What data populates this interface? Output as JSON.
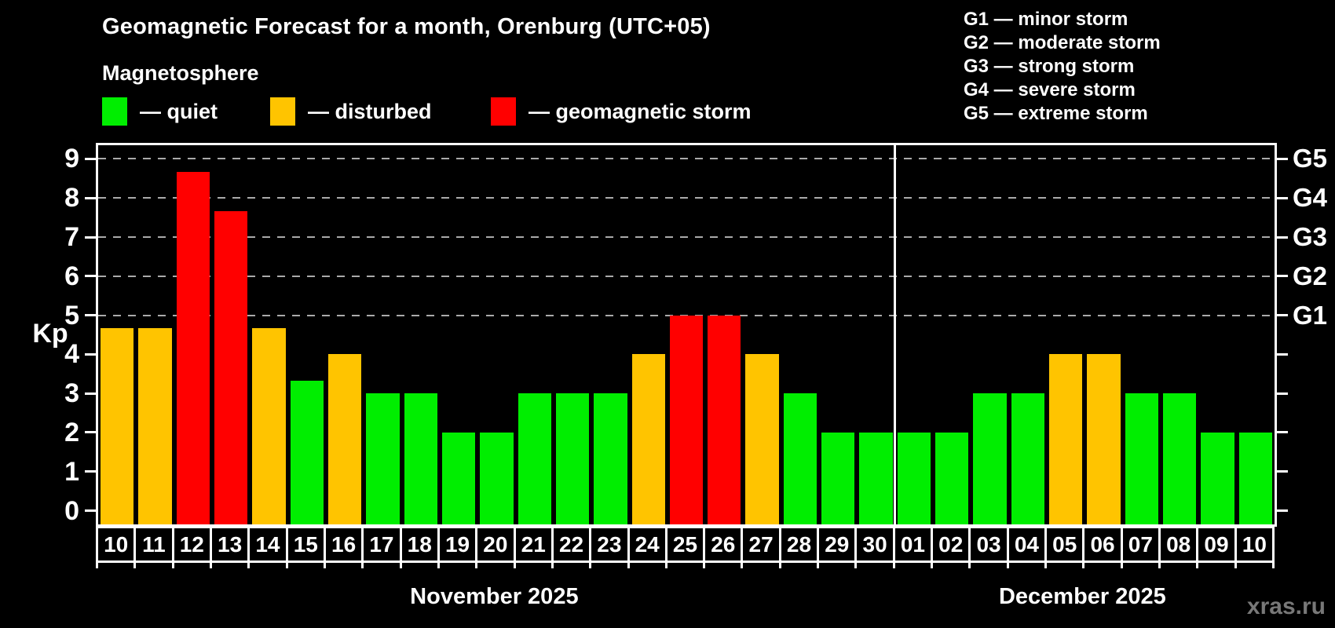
{
  "header": {
    "title": "Geomagnetic Forecast for a month, Orenburg (UTC+05)",
    "subtitle": "Magnetosphere",
    "legend": [
      {
        "key": "quiet",
        "label": "— quiet"
      },
      {
        "key": "disturbed",
        "label": "— disturbed"
      },
      {
        "key": "storm",
        "label": "— geomagnetic storm"
      }
    ],
    "g_scale_legend": [
      "G1 — minor storm",
      "G2 — moderate storm",
      "G3 — strong storm",
      "G4 — severe storm",
      "G5 — extreme storm"
    ]
  },
  "chart_data": {
    "type": "bar",
    "title": "Geomagnetic Forecast for a month, Orenburg (UTC+05)",
    "ylabel": "Kp",
    "ylim": [
      0,
      9
    ],
    "y_ticks": [
      0,
      1,
      2,
      3,
      4,
      5,
      6,
      7,
      8,
      9
    ],
    "grid_levels": [
      5,
      6,
      7,
      8,
      9
    ],
    "grid": "dashed, only at storm levels G1-G5",
    "legend_position": "top-left",
    "right_axis": [
      {
        "label": "G1",
        "kp": 5
      },
      {
        "label": "G2",
        "kp": 6
      },
      {
        "label": "G3",
        "kp": 7
      },
      {
        "label": "G4",
        "kp": 8
      },
      {
        "label": "G5",
        "kp": 9
      }
    ],
    "months": [
      {
        "label": "November 2025",
        "days": [
          {
            "date": "10",
            "kp": 4.67,
            "state": "disturbed"
          },
          {
            "date": "11",
            "kp": 4.67,
            "state": "disturbed"
          },
          {
            "date": "12",
            "kp": 8.67,
            "state": "storm"
          },
          {
            "date": "13",
            "kp": 7.67,
            "state": "storm"
          },
          {
            "date": "14",
            "kp": 4.67,
            "state": "disturbed"
          },
          {
            "date": "15",
            "kp": 3.33,
            "state": "quiet"
          },
          {
            "date": "16",
            "kp": 4.0,
            "state": "disturbed"
          },
          {
            "date": "17",
            "kp": 3.0,
            "state": "quiet"
          },
          {
            "date": "18",
            "kp": 3.0,
            "state": "quiet"
          },
          {
            "date": "19",
            "kp": 2.0,
            "state": "quiet"
          },
          {
            "date": "20",
            "kp": 2.0,
            "state": "quiet"
          },
          {
            "date": "21",
            "kp": 3.0,
            "state": "quiet"
          },
          {
            "date": "22",
            "kp": 3.0,
            "state": "quiet"
          },
          {
            "date": "23",
            "kp": 3.0,
            "state": "quiet"
          },
          {
            "date": "24",
            "kp": 4.0,
            "state": "disturbed"
          },
          {
            "date": "25",
            "kp": 5.0,
            "state": "storm"
          },
          {
            "date": "26",
            "kp": 5.0,
            "state": "storm"
          },
          {
            "date": "27",
            "kp": 4.0,
            "state": "disturbed"
          },
          {
            "date": "28",
            "kp": 3.0,
            "state": "quiet"
          },
          {
            "date": "29",
            "kp": 2.0,
            "state": "quiet"
          },
          {
            "date": "30",
            "kp": 2.0,
            "state": "quiet"
          }
        ]
      },
      {
        "label": "December 2025",
        "days": [
          {
            "date": "01",
            "kp": 2.0,
            "state": "quiet"
          },
          {
            "date": "02",
            "kp": 2.0,
            "state": "quiet"
          },
          {
            "date": "03",
            "kp": 3.0,
            "state": "quiet"
          },
          {
            "date": "04",
            "kp": 3.0,
            "state": "quiet"
          },
          {
            "date": "05",
            "kp": 4.0,
            "state": "disturbed"
          },
          {
            "date": "06",
            "kp": 4.0,
            "state": "disturbed"
          },
          {
            "date": "07",
            "kp": 3.0,
            "state": "quiet"
          },
          {
            "date": "08",
            "kp": 3.0,
            "state": "quiet"
          },
          {
            "date": "09",
            "kp": 2.0,
            "state": "quiet"
          },
          {
            "date": "10",
            "kp": 2.0,
            "state": "quiet"
          }
        ]
      }
    ]
  },
  "colors": {
    "quiet": "#00ee00",
    "disturbed": "#ffc400",
    "storm": "#ff0000",
    "grid": "#aaaaaa",
    "axis": "#ffffff",
    "background": "#000000",
    "watermark": "#787878"
  },
  "watermark": "xras.ru"
}
